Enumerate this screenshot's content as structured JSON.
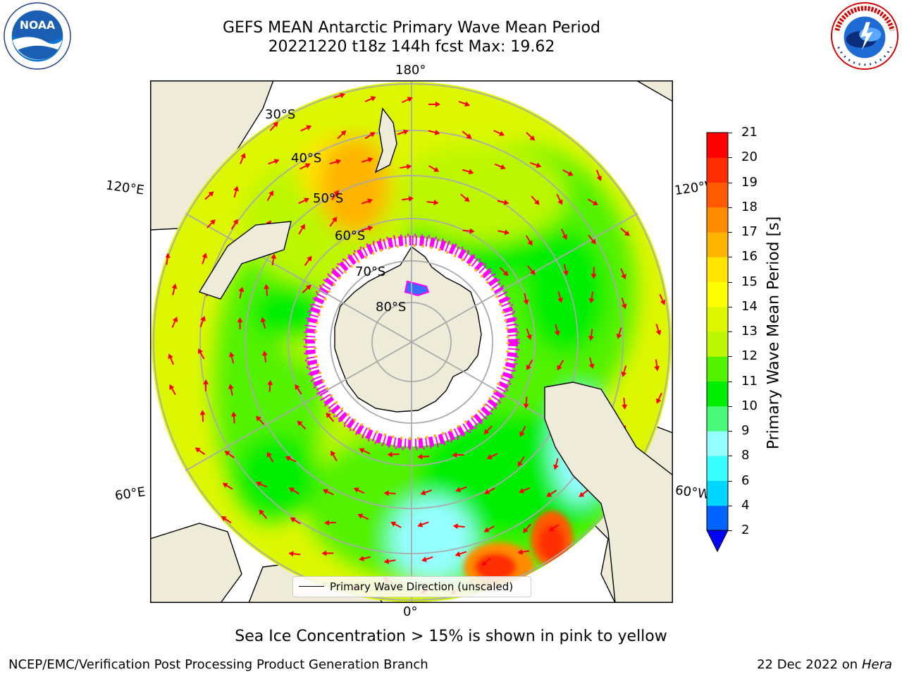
{
  "header": {
    "title_line1": "GEFS MEAN Antarctic Primary Wave Mean Period",
    "title_line2": "20221220 t18z 144h fcst   Max: 19.62"
  },
  "logos": {
    "left": {
      "name": "NOAA",
      "text": "NOAA"
    },
    "right": {
      "name": "NATIONAL WEATHER SERVICE"
    }
  },
  "map": {
    "projection": "south-polar-stereographic",
    "longitude_labels": {
      "top": "180°",
      "bottom": "0°",
      "upper_left": "120°E",
      "upper_right": "120°W",
      "lower_left": "60°E",
      "lower_right": "60°W"
    },
    "latitude_labels": [
      "30°S",
      "40°S",
      "50°S",
      "60°S",
      "70°S",
      "80°S"
    ],
    "legend": "Primary Wave Direction (unscaled)",
    "colors": {
      "land": "#eeecd9",
      "sea_ice_pink": "#ff00ff",
      "arrows": "#ff0000"
    }
  },
  "colorbar": {
    "label": "Primary Wave Mean Period [s]",
    "ticks": [
      "2",
      "4",
      "6",
      "8",
      "9",
      "10",
      "11",
      "12",
      "13",
      "14",
      "15",
      "16",
      "17",
      "18",
      "19",
      "20",
      "21"
    ],
    "colors": [
      "#0063ff",
      "#00d6ff",
      "#38ffff",
      "#95ffff",
      "#48f97a",
      "#00ef00",
      "#52f200",
      "#bcf700",
      "#ddf700",
      "#ffff00",
      "#ffe500",
      "#ffb400",
      "#ff8c00",
      "#ff5a00",
      "#ff2d00",
      "#ff0000"
    ],
    "under_color": "#0000ff"
  },
  "footer": {
    "note": "Sea Ice Concentration > 15% is shown in pink to yellow",
    "credit": "NCEP/EMC/Verification Post Processing Product Generation Branch",
    "date": "22 Dec 2022 on",
    "machine": "Hera"
  }
}
